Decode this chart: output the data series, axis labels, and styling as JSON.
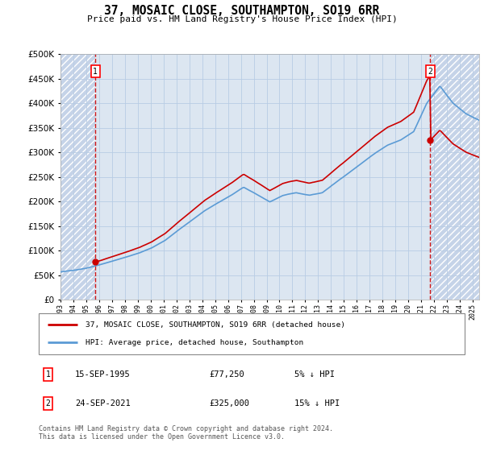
{
  "title": "37, MOSAIC CLOSE, SOUTHAMPTON, SO19 6RR",
  "subtitle": "Price paid vs. HM Land Registry's House Price Index (HPI)",
  "annotation1_date": "15-SEP-1995",
  "annotation1_price": "£77,250",
  "annotation1_hpi": "5% ↓ HPI",
  "annotation2_date": "24-SEP-2021",
  "annotation2_price": "£325,000",
  "annotation2_hpi": "15% ↓ HPI",
  "legend_line1": "37, MOSAIC CLOSE, SOUTHAMPTON, SO19 6RR (detached house)",
  "legend_line2": "HPI: Average price, detached house, Southampton",
  "footer": "Contains HM Land Registry data © Crown copyright and database right 2024.\nThis data is licensed under the Open Government Licence v3.0.",
  "hpi_color": "#5b9bd5",
  "sale_color": "#cc0000",
  "dashed_line_color": "#cc0000",
  "ylim": [
    0,
    500000
  ],
  "yticks": [
    0,
    50000,
    100000,
    150000,
    200000,
    250000,
    300000,
    350000,
    400000,
    450000,
    500000
  ],
  "sale1_x": 1995.71,
  "sale1_y": 77250,
  "sale2_x": 2021.71,
  "sale2_y": 325000,
  "hatch_left_end": 1995.71,
  "hatch_right_start": 2021.71,
  "xlim_left": 1993.0,
  "xlim_right": 2025.5,
  "bg_color": "#dce6f1",
  "grid_color": "#b8cce4",
  "hatch_bg": "#c5d3e8"
}
